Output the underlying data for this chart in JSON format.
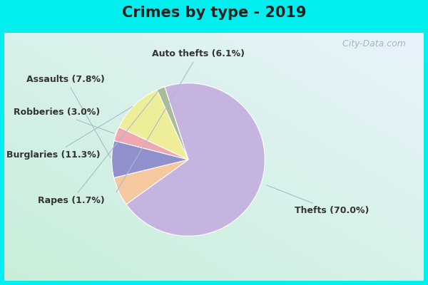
{
  "title": "Crimes by type - 2019",
  "slices": [
    {
      "label": "Thefts",
      "pct": 70.0,
      "color": "#C5B3E0"
    },
    {
      "label": "Auto thefts",
      "pct": 6.1,
      "color": "#F5C8A0"
    },
    {
      "label": "Assaults",
      "pct": 7.8,
      "color": "#9090CC"
    },
    {
      "label": "Robberies",
      "pct": 3.0,
      "color": "#F0A8B0"
    },
    {
      "label": "Burglaries",
      "pct": 11.3,
      "color": "#EEEE99"
    },
    {
      "label": "Rapes",
      "pct": 1.7,
      "color": "#AABB99"
    }
  ],
  "cyan_border": "#00EEEE",
  "title_fontsize": 15,
  "label_fontsize": 9,
  "watermark": " City-Data.com",
  "startangle": 108
}
